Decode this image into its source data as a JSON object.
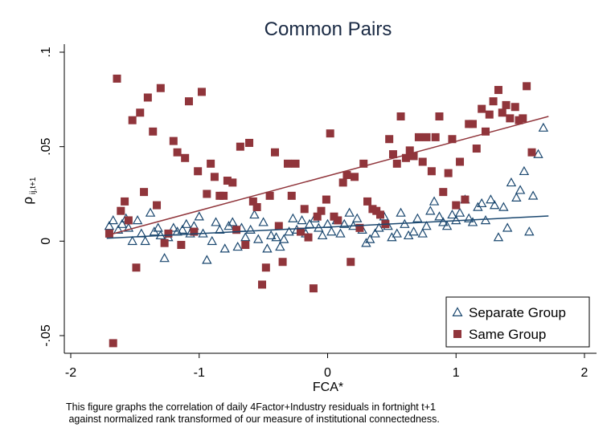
{
  "chart_data": {
    "type": "scatter",
    "title": "Common Pairs",
    "xlabel": "FCA*",
    "ylabel_main": "ρ",
    "ylabel_sub": "ij,t+1",
    "xlim": [
      -2,
      2
    ],
    "ylim": [
      -0.05,
      0.1
    ],
    "x_ticks": [
      {
        "value": -2,
        "label": "-2"
      },
      {
        "value": -1,
        "label": "-1"
      },
      {
        "value": 0,
        "label": "0"
      },
      {
        "value": 1,
        "label": "1"
      },
      {
        "value": 2,
        "label": "2"
      }
    ],
    "y_ticks": [
      {
        "value": -0.05,
        "label": "-.05"
      },
      {
        "value": 0,
        "label": "0"
      },
      {
        "value": 0.05,
        "label": ".05"
      },
      {
        "value": 0.1,
        "label": ".1"
      }
    ],
    "grid": false,
    "legend_position": "bottom-right",
    "series": [
      {
        "name": "Separate Group",
        "marker": "triangle-hollow",
        "color": "#1a476f",
        "fit_line": {
          "x": [
            -1.72,
            1.72
          ],
          "y": [
            0.0015,
            0.0133
          ]
        },
        "points": [
          [
            -1.7,
            0.008
          ],
          [
            -1.67,
            0.011
          ],
          [
            -1.63,
            0.006
          ],
          [
            -1.6,
            0.009
          ],
          [
            -1.57,
            0.012
          ],
          [
            -1.55,
            0.007
          ],
          [
            -1.52,
            0.0
          ],
          [
            -1.48,
            0.011
          ],
          [
            -1.45,
            0.004
          ],
          [
            -1.42,
            0.0
          ],
          [
            -1.38,
            0.015
          ],
          [
            -1.35,
            0.005
          ],
          [
            -1.32,
            0.007
          ],
          [
            -1.3,
            0.003
          ],
          [
            -1.27,
            -0.009
          ],
          [
            -1.24,
            0.002
          ],
          [
            -1.2,
            0.007
          ],
          [
            -1.17,
            0.005
          ],
          [
            -1.13,
            0.006
          ],
          [
            -1.1,
            0.009
          ],
          [
            -1.07,
            0.004
          ],
          [
            -1.04,
            0.008
          ],
          [
            -1.0,
            0.013
          ],
          [
            -0.97,
            0.004
          ],
          [
            -0.94,
            -0.01
          ],
          [
            -0.9,
            0.0
          ],
          [
            -0.87,
            0.01
          ],
          [
            -0.84,
            0.006
          ],
          [
            -0.8,
            -0.004
          ],
          [
            -0.77,
            0.008
          ],
          [
            -0.74,
            0.01
          ],
          [
            -0.7,
            -0.003
          ],
          [
            -0.67,
            0.007
          ],
          [
            -0.64,
            0.002
          ],
          [
            -0.6,
            0.006
          ],
          [
            -0.57,
            0.014
          ],
          [
            -0.54,
            0.001
          ],
          [
            -0.5,
            0.01
          ],
          [
            -0.47,
            -0.004
          ],
          [
            -0.44,
            0.003
          ],
          [
            -0.4,
            0.002
          ],
          [
            -0.37,
            -0.003
          ],
          [
            -0.34,
            0.001
          ],
          [
            -0.3,
            0.005
          ],
          [
            -0.27,
            0.012
          ],
          [
            -0.24,
            0.006
          ],
          [
            -0.2,
            0.011
          ],
          [
            -0.17,
            0.004
          ],
          [
            -0.14,
            0.009
          ],
          [
            -0.1,
            0.012
          ],
          [
            -0.07,
            0.007
          ],
          [
            -0.04,
            0.003
          ],
          [
            0.0,
            0.009
          ],
          [
            0.03,
            0.005
          ],
          [
            0.07,
            0.011
          ],
          [
            0.1,
            0.004
          ],
          [
            0.13,
            0.009
          ],
          [
            0.17,
            0.015
          ],
          [
            0.2,
            0.008
          ],
          [
            0.23,
            0.012
          ],
          [
            0.27,
            0.006
          ],
          [
            0.3,
            -0.001
          ],
          [
            0.33,
            0.001
          ],
          [
            0.37,
            0.004
          ],
          [
            0.4,
            0.007
          ],
          [
            0.44,
            0.013
          ],
          [
            0.47,
            0.008
          ],
          [
            0.5,
            0.002
          ],
          [
            0.54,
            0.004
          ],
          [
            0.57,
            0.015
          ],
          [
            0.6,
            0.009
          ],
          [
            0.63,
            0.003
          ],
          [
            0.67,
            0.005
          ],
          [
            0.7,
            0.012
          ],
          [
            0.74,
            0.004
          ],
          [
            0.77,
            0.008
          ],
          [
            0.8,
            0.016
          ],
          [
            0.83,
            0.021
          ],
          [
            0.87,
            0.013
          ],
          [
            0.9,
            0.01
          ],
          [
            0.93,
            0.008
          ],
          [
            0.97,
            0.014
          ],
          [
            1.0,
            0.011
          ],
          [
            1.03,
            0.015
          ],
          [
            1.07,
            0.022
          ],
          [
            1.1,
            0.012
          ],
          [
            1.13,
            0.01
          ],
          [
            1.17,
            0.018
          ],
          [
            1.2,
            0.02
          ],
          [
            1.23,
            0.011
          ],
          [
            1.27,
            0.022
          ],
          [
            1.3,
            0.019
          ],
          [
            1.33,
            0.002
          ],
          [
            1.37,
            0.018
          ],
          [
            1.4,
            0.007
          ],
          [
            1.43,
            0.031
          ],
          [
            1.47,
            0.023
          ],
          [
            1.5,
            0.027
          ],
          [
            1.53,
            0.037
          ],
          [
            1.57,
            0.005
          ],
          [
            1.6,
            0.024
          ],
          [
            1.64,
            0.046
          ],
          [
            1.68,
            0.06
          ]
        ]
      },
      {
        "name": "Same Group",
        "marker": "square-filled",
        "color": "#90353b",
        "fit_line": {
          "x": [
            -1.72,
            1.72
          ],
          "y": [
            0.003,
            0.066
          ]
        },
        "points": [
          [
            -1.7,
            0.004
          ],
          [
            -1.67,
            -0.054
          ],
          [
            -1.64,
            0.086
          ],
          [
            -1.61,
            0.016
          ],
          [
            -1.58,
            0.021
          ],
          [
            -1.55,
            0.011
          ],
          [
            -1.52,
            0.064
          ],
          [
            -1.49,
            -0.014
          ],
          [
            -1.46,
            0.068
          ],
          [
            -1.43,
            0.026
          ],
          [
            -1.4,
            0.076
          ],
          [
            -1.36,
            0.058
          ],
          [
            -1.33,
            0.019
          ],
          [
            -1.3,
            0.081
          ],
          [
            -1.27,
            -0.001
          ],
          [
            -1.24,
            0.004
          ],
          [
            -1.2,
            0.053
          ],
          [
            -1.17,
            0.047
          ],
          [
            -1.14,
            -0.002
          ],
          [
            -1.11,
            0.044
          ],
          [
            -1.08,
            0.074
          ],
          [
            -1.04,
            0.005
          ],
          [
            -1.01,
            0.037
          ],
          [
            -0.98,
            0.079
          ],
          [
            -0.94,
            0.025
          ],
          [
            -0.91,
            0.041
          ],
          [
            -0.88,
            0.034
          ],
          [
            -0.84,
            0.024
          ],
          [
            -0.81,
            0.024
          ],
          [
            -0.78,
            0.032
          ],
          [
            -0.74,
            0.031
          ],
          [
            -0.71,
            0.006
          ],
          [
            -0.68,
            0.05
          ],
          [
            -0.64,
            -0.002
          ],
          [
            -0.61,
            0.052
          ],
          [
            -0.58,
            0.021
          ],
          [
            -0.55,
            0.018
          ],
          [
            -0.51,
            -0.023
          ],
          [
            -0.48,
            -0.014
          ],
          [
            -0.45,
            0.024
          ],
          [
            -0.41,
            0.047
          ],
          [
            -0.38,
            0.008
          ],
          [
            -0.35,
            -0.011
          ],
          [
            -0.31,
            0.041
          ],
          [
            -0.28,
            0.024
          ],
          [
            -0.25,
            0.041
          ],
          [
            -0.21,
            0.005
          ],
          [
            -0.18,
            0.017
          ],
          [
            -0.15,
            0.002
          ],
          [
            -0.11,
            -0.025
          ],
          [
            -0.08,
            0.013
          ],
          [
            -0.05,
            0.016
          ],
          [
            -0.01,
            0.022
          ],
          [
            0.02,
            0.057
          ],
          [
            0.05,
            0.013
          ],
          [
            0.08,
            0.011
          ],
          [
            0.12,
            0.031
          ],
          [
            0.15,
            0.035
          ],
          [
            0.18,
            -0.011
          ],
          [
            0.21,
            0.034
          ],
          [
            0.25,
            0.007
          ],
          [
            0.28,
            0.041
          ],
          [
            0.31,
            0.021
          ],
          [
            0.35,
            0.017
          ],
          [
            0.38,
            0.016
          ],
          [
            0.41,
            0.014
          ],
          [
            0.45,
            0.009
          ],
          [
            0.48,
            0.054
          ],
          [
            0.51,
            0.046
          ],
          [
            0.54,
            0.041
          ],
          [
            0.57,
            0.066
          ],
          [
            0.61,
            0.044
          ],
          [
            0.64,
            0.048
          ],
          [
            0.67,
            0.045
          ],
          [
            0.71,
            0.055
          ],
          [
            0.74,
            0.042
          ],
          [
            0.77,
            0.055
          ],
          [
            0.81,
            0.037
          ],
          [
            0.84,
            0.055
          ],
          [
            0.87,
            0.066
          ],
          [
            0.9,
            0.026
          ],
          [
            0.94,
            0.036
          ],
          [
            0.97,
            0.054
          ],
          [
            1.0,
            0.019
          ],
          [
            1.03,
            0.042
          ],
          [
            1.07,
            0.022
          ],
          [
            1.1,
            0.062
          ],
          [
            1.13,
            0.062
          ],
          [
            1.16,
            0.049
          ],
          [
            1.2,
            0.07
          ],
          [
            1.23,
            0.058
          ],
          [
            1.26,
            0.067
          ],
          [
            1.29,
            0.074
          ],
          [
            1.33,
            0.08
          ],
          [
            1.36,
            0.068
          ],
          [
            1.39,
            0.072
          ],
          [
            1.42,
            0.065
          ],
          [
            1.46,
            0.071
          ],
          [
            1.49,
            0.064
          ],
          [
            1.52,
            0.065
          ],
          [
            1.55,
            0.082
          ],
          [
            1.59,
            0.047
          ]
        ]
      }
    ]
  },
  "caption": {
    "line1": "This figure graphs the correlation of daily 4Factor+Industry residuals in fortnight t+1",
    "line2": " against normalized rank transformed of our measure of institutional connectedness."
  }
}
